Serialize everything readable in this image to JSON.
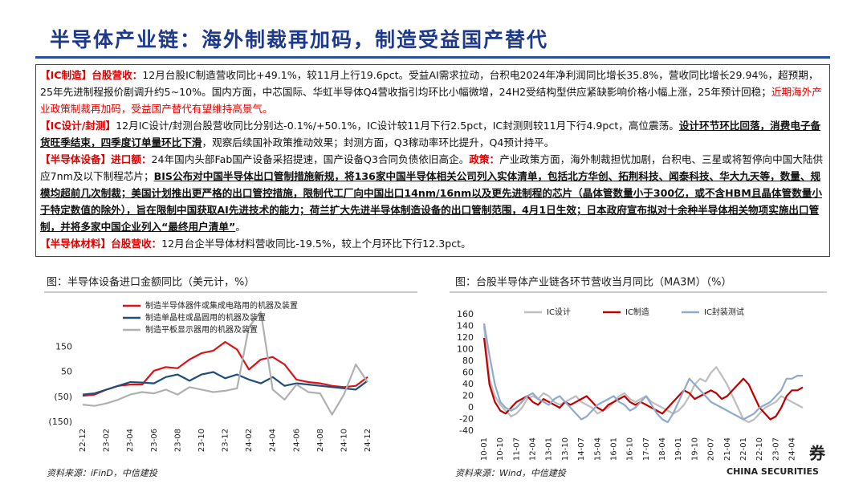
{
  "title": "半导体产业链：海外制裁再加码，制造受益国产替代",
  "paragraphs": [
    [
      "【IC制造】台股营收：",
      "12月台股IC制造营收同比+49.1%，较11月上行19.6pct。受益AI需求拉动，台积电2024年净利润同比增长35.8%，营收同比增长29.94%，超预期，25年先进制程报价剧调升约5~10%。国内方面，中芯国际、华虹半导体Q4营收指引均环比小幅微增，24H2受结构型供应紧缺影响价格小幅上涨，25年预计回稳；",
      "近期海外产业政策制裁再加码，受益国产替代有望维持高景气。"
    ],
    [
      "【IC设计/封测】",
      "12月IC设计/封测台股营收同比分别达-0.1%/+50.1%，IC设计较11月下行2.5pct，IC封测则较11月下行4.9pct，高位震荡。",
      "设计环节环比回落，消费电子备货旺季结束，四季度订单量环比下滑",
      "，观察后续国补政策推动效果；封测方面，Q3稼动率环比提升，Q4预计持平。"
    ],
    [
      "【半导体设备】进口额：",
      "24年国内头部Fab国产设备采招提速，国产设备Q3合同负债依旧高企。",
      "政策：",
      "产业政策方面，海外制裁担忧加剧，台积电、三星或将暂停向中国大陆供应7nm及以下制程芯片；",
      "BIS公布对中国半导体出口管制措施新规，将136家中国半导体相关公司列入实体清单，包括北方华创、拓荆科技、闻泰科技、华大九天等，数量、规模均超前几次制裁；美国计划推出更严格的出口管控措施，限制代工厂向中国出口14nm/16nm以及更先进制程的芯片（晶体管数量小于300亿，或不含HBM且晶体管数量小于特定数值的除外），旨在限制中国获取AI先进技术的能力；荷兰扩大先进半导体制造设备的出口管制范围，4月1日生效；日本政府宣布拟对十余种半导体相关物项实施出口管制，并将多家中国企业列入“最终用户清单”",
      "。"
    ],
    [
      "【半导体材料】台股营收：",
      "12月台企半导体材料营收同比-19.5%，较上个月环比下行12.3pct。"
    ]
  ],
  "footer": {
    "logo_text": "CHINA SECURITIES",
    "logo_char": "券"
  },
  "chart_data": [
    {
      "type": "line",
      "title": "图：半导体设备进口金额同比（美元计，%）",
      "source": "资料来源：iFinD，中信建投",
      "categories": [
        "22-12",
        null,
        "23-02",
        null,
        "23-04",
        null,
        "23-06",
        null,
        "23-08",
        null,
        "23-10",
        null,
        "23-12",
        null,
        "24-02",
        null,
        "24-04",
        null,
        "24-06",
        null,
        "24-08",
        null,
        "24-10",
        null,
        "24-12"
      ],
      "series": [
        {
          "name": "制造半导体器件或集成电路用的机器及装置",
          "color": "#d7141a",
          "values": [
            -45,
            -40,
            -20,
            -5,
            0,
            0,
            55,
            70,
            65,
            100,
            125,
            135,
            170,
            140,
            60,
            100,
            110,
            80,
            20,
            10,
            5,
            -5,
            -10,
            -5,
            30
          ]
        },
        {
          "name": "制造单晶柱或晶圆用的机器及装置",
          "color": "#1f4e79",
          "values": [
            -40,
            -35,
            -20,
            -5,
            10,
            8,
            5,
            30,
            40,
            15,
            40,
            50,
            25,
            40,
            20,
            5,
            30,
            -5,
            5,
            0,
            -5,
            -10,
            -15,
            -20,
            15
          ]
        },
        {
          "name": "制造平板显示器用的机器及装置",
          "color": "#b0b0b0",
          "values": [
            -80,
            -85,
            -75,
            -60,
            -40,
            -30,
            -35,
            -20,
            -40,
            -10,
            -20,
            -30,
            -25,
            -15,
            230,
            290,
            -20,
            -60,
            0,
            -30,
            -35,
            -120,
            -40,
            80,
            10
          ]
        }
      ],
      "ylim": [
        -150,
        330
      ],
      "yticks": [
        150,
        50,
        {
          "value": -50,
          "label": "(50)"
        },
        {
          "value": -150,
          "label": "(150)"
        }
      ],
      "legend": "upper-left"
    },
    {
      "type": "line",
      "title": "图：台股半导体产业链各环节营收当月同比（MA3M）（%）",
      "source": "资料来源：Wind，中信建投",
      "categories": [
        "10-01",
        null,
        null,
        "10-10",
        null,
        null,
        "11-07",
        null,
        null,
        "12-04",
        null,
        null,
        "13-01",
        null,
        null,
        "13-10",
        null,
        null,
        "14-07",
        null,
        null,
        "15-04",
        null,
        null,
        "16-01",
        null,
        null,
        "16-10",
        null,
        null,
        "17-07",
        null,
        null,
        "18-04",
        null,
        null,
        "19-01",
        null,
        null,
        "19-10",
        null,
        null,
        "20-07",
        null,
        null,
        "21-04",
        null,
        null,
        "22-01",
        null,
        null,
        "22-10",
        null,
        null,
        "23-07",
        null,
        null,
        "24-04",
        null,
        null
      ],
      "series": [
        {
          "name": "IC设计",
          "color": "#bdbdbd",
          "values": [
            140,
            50,
            20,
            5,
            -5,
            -15,
            -10,
            0,
            15,
            20,
            15,
            25,
            20,
            10,
            5,
            10,
            15,
            20,
            10,
            5,
            0,
            -10,
            -5,
            0,
            10,
            20,
            25,
            15,
            10,
            15,
            20,
            10,
            5,
            0,
            -5,
            -10,
            -5,
            5,
            20,
            40,
            50,
            45,
            60,
            70,
            55,
            40,
            20,
            0,
            -20,
            -25,
            -20,
            -10,
            0,
            5,
            10,
            20,
            15,
            10,
            5,
            0
          ]
        },
        {
          "name": "IC制造",
          "color": "#c00000",
          "values": [
            120,
            40,
            10,
            -5,
            -10,
            0,
            10,
            15,
            20,
            10,
            5,
            15,
            10,
            5,
            0,
            10,
            5,
            10,
            15,
            20,
            10,
            0,
            -5,
            5,
            10,
            15,
            20,
            10,
            5,
            10,
            5,
            0,
            -5,
            -10,
            0,
            10,
            20,
            30,
            25,
            15,
            20,
            25,
            30,
            25,
            15,
            20,
            30,
            40,
            50,
            40,
            20,
            0,
            -10,
            -20,
            -15,
            0,
            20,
            30,
            30,
            35
          ]
        },
        {
          "name": "IC封装测试",
          "color": "#8faacb",
          "values": [
            145,
            90,
            40,
            10,
            0,
            -5,
            0,
            10,
            20,
            25,
            15,
            10,
            5,
            15,
            20,
            10,
            0,
            -10,
            -20,
            -15,
            -5,
            5,
            10,
            15,
            20,
            10,
            5,
            -5,
            0,
            10,
            20,
            5,
            -10,
            -20,
            -25,
            -10,
            10,
            30,
            50,
            40,
            30,
            20,
            10,
            5,
            0,
            -5,
            -10,
            -15,
            -20,
            -15,
            -10,
            0,
            5,
            10,
            20,
            30,
            50,
            50,
            55,
            55
          ]
        }
      ],
      "ylim": [
        -40,
        160
      ],
      "yticks": [
        -40,
        -20,
        0,
        20,
        40,
        60,
        80,
        100,
        120,
        140,
        160
      ],
      "legend": "upper-center"
    }
  ]
}
